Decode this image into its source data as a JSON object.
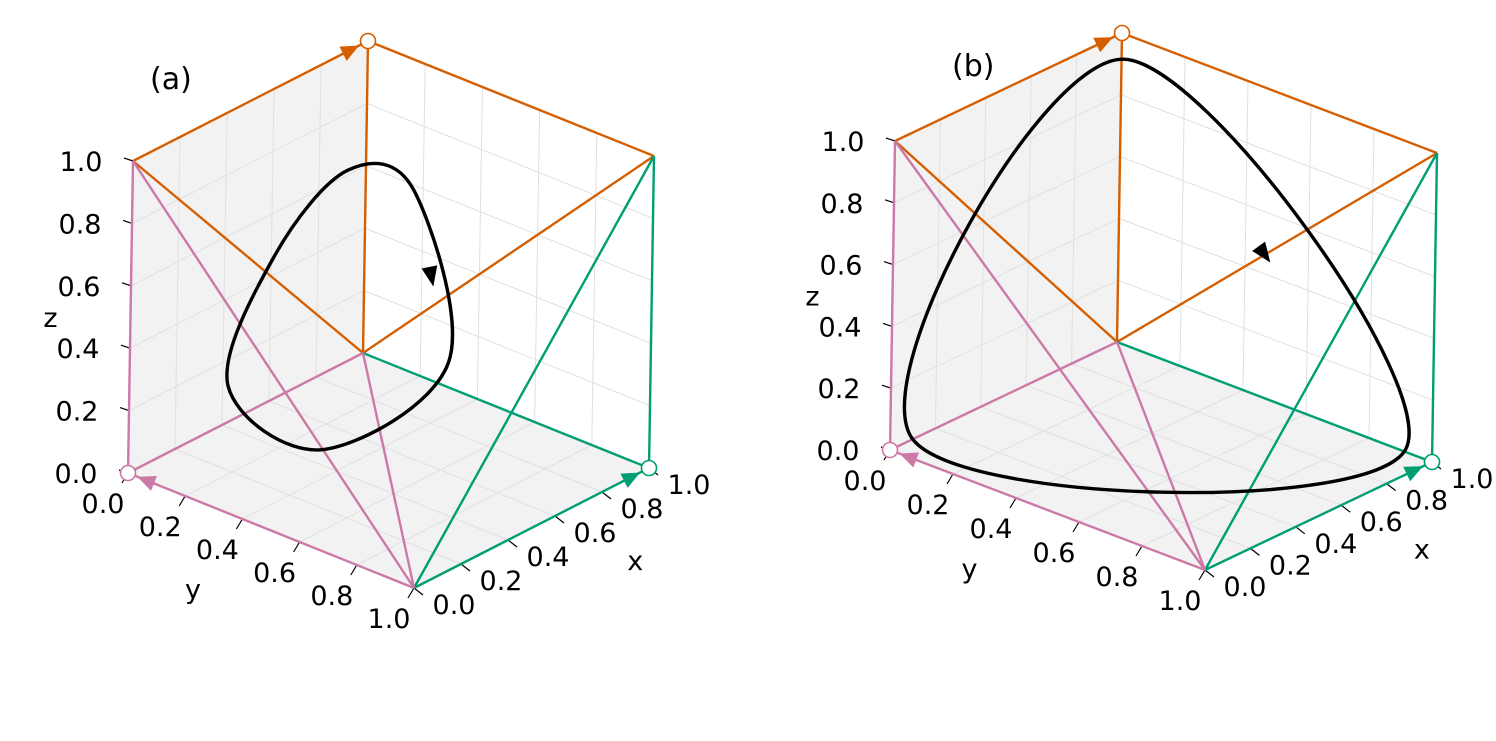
{
  "colors": {
    "orange": "#d55e00",
    "green": "#009e73",
    "pink": "#cc79a7",
    "trajectory": "#000000",
    "pane": "#f2f2f2",
    "grid": "#e0e0e0"
  },
  "chart_data": [
    {
      "type": "line3d",
      "panel_label": "(a)",
      "xlabel": "x",
      "ylabel": "y",
      "zlabel": "z",
      "xlim": [
        0,
        1
      ],
      "ylim": [
        0,
        1
      ],
      "zlim": [
        0,
        1
      ],
      "xticks": [
        "0.0",
        "0.2",
        "0.4",
        "0.6",
        "0.8",
        "1.0"
      ],
      "yticks": [
        "0.0",
        "0.2",
        "0.4",
        "0.6",
        "0.8",
        "1.0"
      ],
      "zticks": [
        "0.0",
        "0.2",
        "0.4",
        "0.6",
        "0.8",
        "1.0"
      ],
      "grid": true,
      "fixed_points": [
        {
          "color": "orange",
          "point": [
            0,
            0,
            1
          ]
        },
        {
          "color": "green",
          "point": [
            1,
            0,
            0
          ]
        },
        {
          "color": "pink",
          "point": [
            0,
            1,
            0
          ]
        }
      ],
      "trajectory": {
        "closed": true,
        "points": [
          [
            0.25,
            0.1,
            0.65
          ],
          [
            0.5,
            0.25,
            0.25
          ],
          [
            0.35,
            0.6,
            0.05
          ],
          [
            0.1,
            0.7,
            0.2
          ],
          [
            0.05,
            0.45,
            0.5
          ],
          [
            0.1,
            0.2,
            0.7
          ]
        ]
      }
    },
    {
      "type": "line3d",
      "panel_label": "(b)",
      "xlabel": "x",
      "ylabel": "y",
      "zlabel": "z",
      "xlim": [
        0,
        1
      ],
      "ylim": [
        0,
        1
      ],
      "zlim": [
        0,
        1
      ],
      "xticks": [
        "0.0",
        "0.2",
        "0.4",
        "0.6",
        "0.8",
        "1.0"
      ],
      "yticks": [
        "0.0",
        "0.2",
        "0.4",
        "0.6",
        "0.8",
        "1.0"
      ],
      "zticks": [
        "0.0",
        "0.2",
        "0.4",
        "0.6",
        "0.8",
        "1.0"
      ],
      "grid": true,
      "fixed_points": [
        {
          "color": "orange",
          "point": [
            0,
            0,
            1
          ]
        },
        {
          "color": "green",
          "point": [
            1,
            0,
            0
          ]
        },
        {
          "color": "pink",
          "point": [
            0,
            1,
            0
          ]
        }
      ],
      "trajectory": {
        "closed": true,
        "points": [
          [
            0.02,
            0.02,
            0.93
          ],
          [
            0.93,
            0.02,
            0.02
          ],
          [
            0.02,
            0.93,
            0.02
          ]
        ]
      }
    }
  ]
}
